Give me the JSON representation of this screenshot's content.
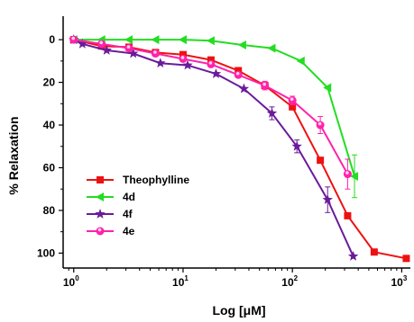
{
  "chart_data": {
    "type": "line",
    "title": "",
    "xlabel": "Log [μM]",
    "ylabel": "% Relaxation",
    "x_scale": "log",
    "xlim": [
      0.8,
      1200
    ],
    "ylim": [
      107,
      -11
    ],
    "y_inverted": true,
    "x_ticks": [
      {
        "value": 1,
        "base": "10",
        "exp": "0"
      },
      {
        "value": 10,
        "base": "10",
        "exp": "1"
      },
      {
        "value": 100,
        "base": "10",
        "exp": "2"
      },
      {
        "value": 1000,
        "base": "10",
        "exp": "3"
      }
    ],
    "y_ticks": [
      0,
      20,
      40,
      60,
      80,
      100
    ],
    "grid": false,
    "legend_position": "bottom-left",
    "series": [
      {
        "name": "Theophylline",
        "color": "#ee1111",
        "marker": "square",
        "points": [
          {
            "x": 1.0,
            "y": 0
          },
          {
            "x": 1.8,
            "y": 3
          },
          {
            "x": 3.2,
            "y": 3.5
          },
          {
            "x": 5.6,
            "y": 6
          },
          {
            "x": 10,
            "y": 7
          },
          {
            "x": 18,
            "y": 9.5
          },
          {
            "x": 32,
            "y": 14.5
          },
          {
            "x": 56,
            "y": 21.5
          },
          {
            "x": 100,
            "y": 31.5
          },
          {
            "x": 180,
            "y": 56.5
          },
          {
            "x": 320,
            "y": 82.5
          },
          {
            "x": 560,
            "y": 99.5
          },
          {
            "x": 1100,
            "y": 102.5
          }
        ]
      },
      {
        "name": "4d",
        "color": "#22dd22",
        "marker": "triangle-left",
        "points": [
          {
            "x": 1.0,
            "y": 0
          },
          {
            "x": 1.8,
            "y": 0
          },
          {
            "x": 3.2,
            "y": 0
          },
          {
            "x": 5.6,
            "y": 0
          },
          {
            "x": 10,
            "y": 0
          },
          {
            "x": 18,
            "y": 0.5
          },
          {
            "x": 35,
            "y": 2.5
          },
          {
            "x": 65,
            "y": 4
          },
          {
            "x": 120,
            "y": 10
          },
          {
            "x": 210,
            "y": 22.5
          },
          {
            "x": 370,
            "y": 64,
            "err": 10
          }
        ]
      },
      {
        "name": "4f",
        "color": "#6a1b9a",
        "marker": "star",
        "points": [
          {
            "x": 1.0,
            "y": 0
          },
          {
            "x": 1.2,
            "y": 2
          },
          {
            "x": 2.0,
            "y": 5
          },
          {
            "x": 3.5,
            "y": 6.5
          },
          {
            "x": 6.2,
            "y": 11
          },
          {
            "x": 11,
            "y": 12
          },
          {
            "x": 20,
            "y": 16
          },
          {
            "x": 36,
            "y": 23
          },
          {
            "x": 65,
            "y": 34.5,
            "err": 3
          },
          {
            "x": 110,
            "y": 50,
            "err": 3
          },
          {
            "x": 210,
            "y": 75,
            "err": 6
          },
          {
            "x": 360,
            "y": 101.5
          }
        ]
      },
      {
        "name": "4e",
        "color": "#ff22aa",
        "marker": "circle",
        "points": [
          {
            "x": 1.0,
            "y": 0
          },
          {
            "x": 1.8,
            "y": 2
          },
          {
            "x": 3.2,
            "y": 4
          },
          {
            "x": 5.6,
            "y": 6.5
          },
          {
            "x": 10,
            "y": 9
          },
          {
            "x": 18,
            "y": 11.5
          },
          {
            "x": 32,
            "y": 16.5
          },
          {
            "x": 56,
            "y": 21.5,
            "err": 2
          },
          {
            "x": 100,
            "y": 28.5,
            "err": 2
          },
          {
            "x": 180,
            "y": 40,
            "err": 4
          },
          {
            "x": 320,
            "y": 63,
            "err": 7
          }
        ]
      }
    ]
  }
}
